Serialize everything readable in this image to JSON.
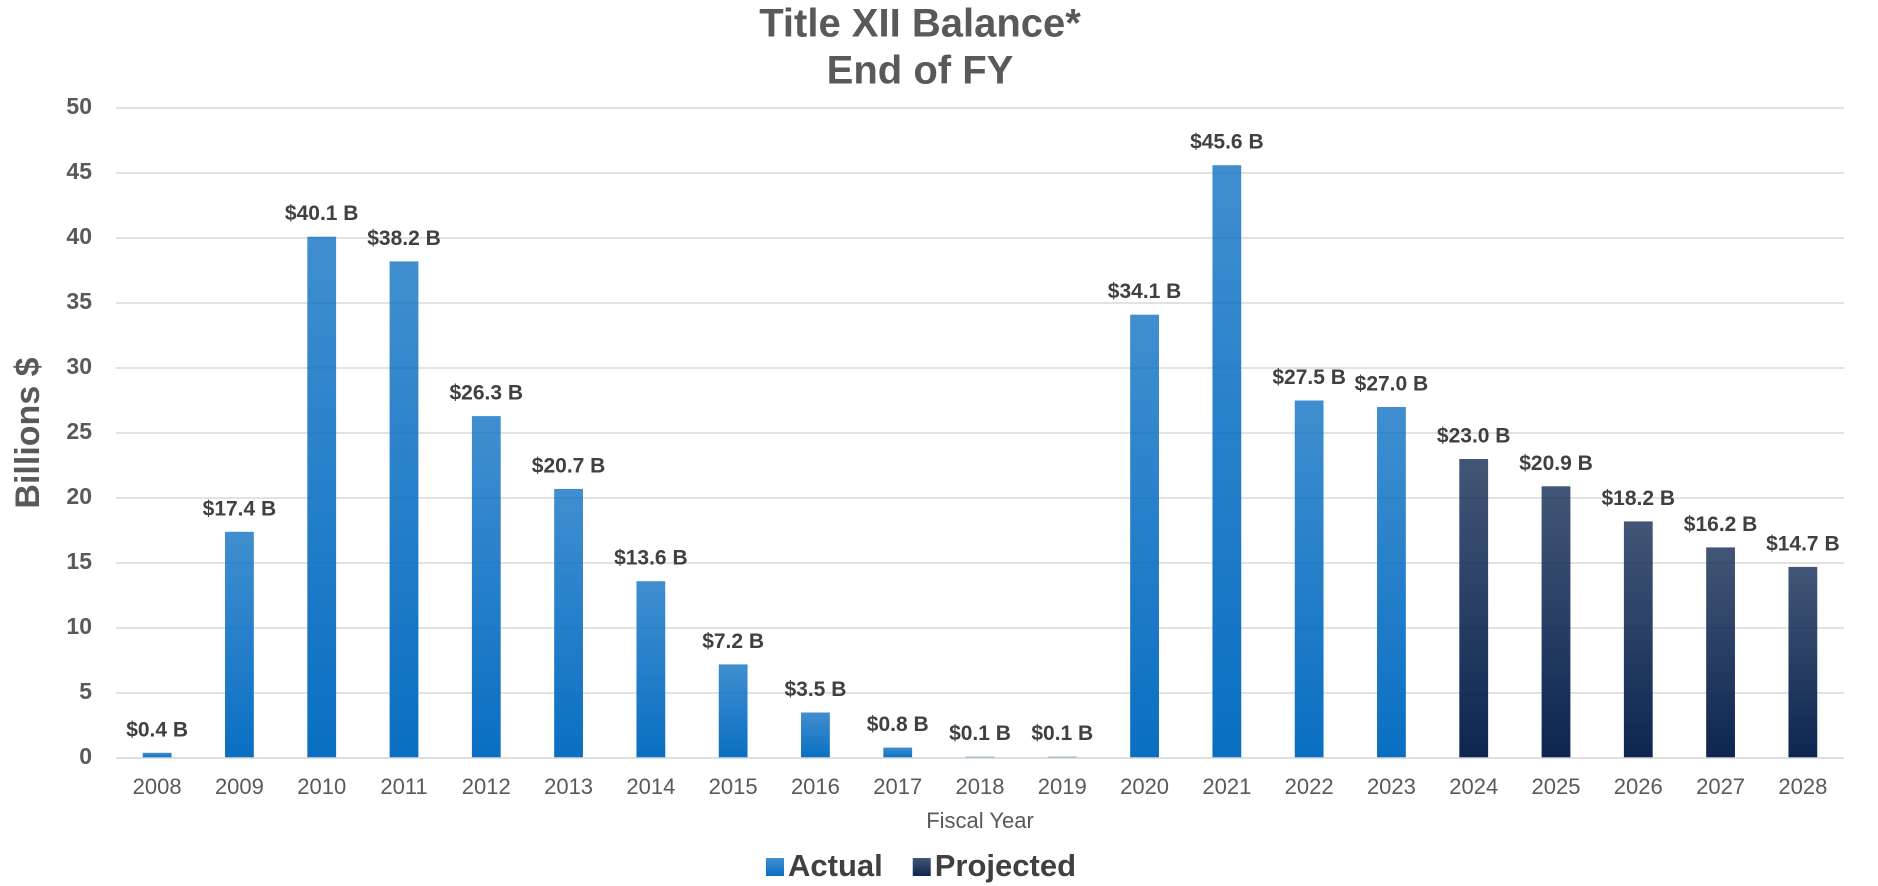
{
  "chart_data": {
    "type": "bar",
    "title": "Title XII Balance*",
    "subtitle": "End of FY",
    "y_label": "Billions $",
    "x_label": "Fiscal Year",
    "categories": [
      "2008",
      "2009",
      "2010",
      "2011",
      "2012",
      "2013",
      "2014",
      "2015",
      "2016",
      "2017",
      "2018",
      "2019",
      "2020",
      "2021",
      "2022",
      "2023",
      "2024",
      "2025",
      "2026",
      "2027",
      "2028"
    ],
    "series": [
      {
        "name": "Actual",
        "color": "#0a6fc2",
        "values": [
          0.4,
          17.4,
          40.1,
          38.2,
          26.3,
          20.7,
          13.6,
          7.2,
          3.5,
          0.8,
          0.1,
          0.1,
          34.1,
          45.6,
          27.5,
          27.0,
          null,
          null,
          null,
          null,
          null
        ],
        "value_labels": [
          "$0.4 B",
          "$17.4 B",
          "$40.1 B",
          "$38.2 B",
          "$26.3 B",
          "$20.7 B",
          "$13.6 B",
          "$7.2 B",
          "$3.5 B",
          "$0.8 B",
          "$0.1 B",
          "$0.1 B",
          "$34.1 B",
          "$45.6 B",
          "$27.5 B",
          "$27.0 B",
          null,
          null,
          null,
          null,
          null
        ]
      },
      {
        "name": "Projected",
        "color": "#0d2650",
        "values": [
          null,
          null,
          null,
          null,
          null,
          null,
          null,
          null,
          null,
          null,
          null,
          null,
          null,
          null,
          null,
          null,
          23.0,
          20.9,
          18.2,
          16.2,
          14.7
        ],
        "value_labels": [
          null,
          null,
          null,
          null,
          null,
          null,
          null,
          null,
          null,
          null,
          null,
          null,
          null,
          null,
          null,
          null,
          "$23.0 B",
          "$20.9 B",
          "$18.2 B",
          "$16.2 B",
          "$14.7 B"
        ]
      }
    ],
    "ylim": [
      0,
      50
    ],
    "yticks": [
      0,
      5,
      10,
      15,
      20,
      25,
      30,
      35,
      40,
      45,
      50
    ],
    "grid": true,
    "legend": "bottom"
  }
}
